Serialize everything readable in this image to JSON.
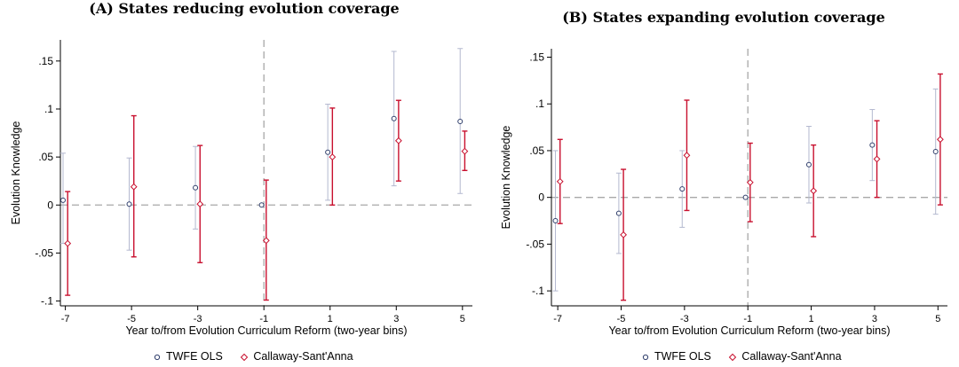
{
  "chart_data": [
    {
      "type": "scatter",
      "panel_title": "(A) States reducing evolution coverage",
      "xlabel": "Year to/from Evolution Curriculum Reform (two-year bins)",
      "ylabel": "Evolution Knowledge",
      "x_ticks": [
        -7,
        -5,
        -3,
        -1,
        1,
        3,
        5
      ],
      "y_ticks": [
        {
          "value": -0.1,
          "label": "-.1"
        },
        {
          "value": -0.05,
          "label": "-.05"
        },
        {
          "value": 0,
          "label": "0"
        },
        {
          "value": 0.05,
          "label": ".05"
        },
        {
          "value": 0.1,
          "label": ".1"
        },
        {
          "value": 0.15,
          "label": ".15"
        }
      ],
      "ylim": [
        -0.105,
        0.172
      ],
      "xlim": [
        -7.15,
        5.3
      ],
      "reference_lines": {
        "vertical_x": -1,
        "horizontal_y": 0
      },
      "grid": false,
      "series": [
        {
          "name": "TWFE OLS",
          "color": "#2f3e6b",
          "marker": "circle",
          "points": [
            {
              "x": -7,
              "y": 0.005,
              "lo": -0.04,
              "hi": 0.054
            },
            {
              "x": -5,
              "y": 0.001,
              "lo": -0.047,
              "hi": 0.049
            },
            {
              "x": -3,
              "y": 0.018,
              "lo": -0.025,
              "hi": 0.061
            },
            {
              "x": -1,
              "y": 0.0,
              "lo": 0.0,
              "hi": 0.0
            },
            {
              "x": 1,
              "y": 0.055,
              "lo": 0.005,
              "hi": 0.105
            },
            {
              "x": 3,
              "y": 0.09,
              "lo": 0.02,
              "hi": 0.16
            },
            {
              "x": 5,
              "y": 0.087,
              "lo": 0.012,
              "hi": 0.163
            }
          ]
        },
        {
          "name": "Callaway-Sant'Anna",
          "color": "#c8102e",
          "marker": "diamond",
          "points": [
            {
              "x": -7,
              "y": -0.04,
              "lo": -0.094,
              "hi": 0.014
            },
            {
              "x": -5,
              "y": 0.019,
              "lo": -0.054,
              "hi": 0.093
            },
            {
              "x": -3,
              "y": 0.001,
              "lo": -0.06,
              "hi": 0.062
            },
            {
              "x": -1,
              "y": -0.037,
              "lo": -0.099,
              "hi": 0.026
            },
            {
              "x": 1,
              "y": 0.05,
              "lo": 0.0,
              "hi": 0.101
            },
            {
              "x": 3,
              "y": 0.067,
              "lo": 0.025,
              "hi": 0.109
            },
            {
              "x": 5,
              "y": 0.056,
              "lo": 0.036,
              "hi": 0.077
            }
          ]
        }
      ]
    },
    {
      "type": "scatter",
      "panel_title": "(B) States expanding evolution coverage",
      "xlabel": "Year to/from Evolution Curriculum Reform (two-year bins)",
      "ylabel": "Evolution Knowledge",
      "x_ticks": [
        -7,
        -5,
        -3,
        -1,
        1,
        3,
        5
      ],
      "y_ticks": [
        {
          "value": -0.1,
          "label": "-.1"
        },
        {
          "value": -0.05,
          "label": "-.05"
        },
        {
          "value": 0,
          "label": "0"
        },
        {
          "value": 0.05,
          "label": ".05"
        },
        {
          "value": 0.1,
          "label": ".1"
        },
        {
          "value": 0.15,
          "label": ".15"
        }
      ],
      "ylim": [
        -0.116,
        0.159
      ],
      "xlim": [
        -7.2,
        5.3
      ],
      "reference_lines": {
        "vertical_x": -1,
        "horizontal_y": 0
      },
      "grid": false,
      "series": [
        {
          "name": "TWFE OLS",
          "color": "#2f3e6b",
          "marker": "circle",
          "points": [
            {
              "x": -7,
              "y": -0.025,
              "lo": -0.1,
              "hi": 0.05
            },
            {
              "x": -5,
              "y": -0.017,
              "lo": -0.06,
              "hi": 0.026
            },
            {
              "x": -3,
              "y": 0.009,
              "lo": -0.032,
              "hi": 0.05
            },
            {
              "x": -1,
              "y": 0.0,
              "lo": 0.0,
              "hi": 0.0
            },
            {
              "x": 1,
              "y": 0.035,
              "lo": -0.006,
              "hi": 0.076
            },
            {
              "x": 3,
              "y": 0.056,
              "lo": 0.018,
              "hi": 0.094
            },
            {
              "x": 5,
              "y": 0.049,
              "lo": -0.018,
              "hi": 0.116
            }
          ]
        },
        {
          "name": "Callaway-Sant'Anna",
          "color": "#c8102e",
          "marker": "diamond",
          "points": [
            {
              "x": -7,
              "y": 0.017,
              "lo": -0.028,
              "hi": 0.062
            },
            {
              "x": -5,
              "y": -0.04,
              "lo": -0.11,
              "hi": 0.03
            },
            {
              "x": -3,
              "y": 0.045,
              "lo": -0.014,
              "hi": 0.104
            },
            {
              "x": -1,
              "y": 0.016,
              "lo": -0.026,
              "hi": 0.058
            },
            {
              "x": 1,
              "y": 0.007,
              "lo": -0.042,
              "hi": 0.056
            },
            {
              "x": 3,
              "y": 0.041,
              "lo": 0.0,
              "hi": 0.082
            },
            {
              "x": 5,
              "y": 0.062,
              "lo": -0.008,
              "hi": 0.132
            }
          ]
        }
      ]
    }
  ],
  "legend": {
    "items": [
      {
        "label": "TWFE OLS",
        "marker": "circle",
        "color": "#2f3e6b"
      },
      {
        "label": "Callaway-Sant'Anna",
        "marker": "diamond",
        "color": "#c8102e"
      }
    ]
  }
}
